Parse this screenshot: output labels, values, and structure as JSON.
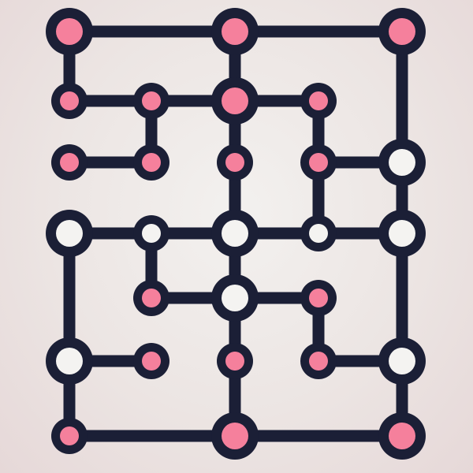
{
  "colors": {
    "background": "#efe9e7",
    "wire": "#1b1f36",
    "node_ring": "#1b1f36",
    "node_lit": "#f5809c",
    "node_unlit": "#f4f3f1"
  },
  "puzzle": {
    "nodes": [
      {
        "id": "r0c0",
        "row": 0,
        "col": 0,
        "state": "lit",
        "size": "large"
      },
      {
        "id": "r0c2",
        "row": 0,
        "col": 2,
        "state": "lit",
        "size": "large"
      },
      {
        "id": "r0c4",
        "row": 0,
        "col": 4,
        "state": "lit",
        "size": "large"
      },
      {
        "id": "r1c0",
        "row": 1,
        "col": 0,
        "state": "lit",
        "size": "small"
      },
      {
        "id": "r1c1",
        "row": 1,
        "col": 1,
        "state": "lit",
        "size": "small"
      },
      {
        "id": "r1c2",
        "row": 1,
        "col": 2,
        "state": "lit",
        "size": "large"
      },
      {
        "id": "r1c3",
        "row": 1,
        "col": 3,
        "state": "lit",
        "size": "small"
      },
      {
        "id": "r2c0",
        "row": 2,
        "col": 0,
        "state": "lit",
        "size": "small"
      },
      {
        "id": "r2c1",
        "row": 2,
        "col": 1,
        "state": "lit",
        "size": "small"
      },
      {
        "id": "r2c2",
        "row": 2,
        "col": 2,
        "state": "lit",
        "size": "small"
      },
      {
        "id": "r2c3",
        "row": 2,
        "col": 3,
        "state": "lit",
        "size": "small"
      },
      {
        "id": "r2c4",
        "row": 2,
        "col": 4,
        "state": "unlit",
        "size": "large"
      },
      {
        "id": "r3c0",
        "row": 3,
        "col": 0,
        "state": "unlit",
        "size": "large"
      },
      {
        "id": "r3c1",
        "row": 3,
        "col": 1,
        "state": "unlit",
        "size": "small"
      },
      {
        "id": "r3c2",
        "row": 3,
        "col": 2,
        "state": "unlit",
        "size": "large"
      },
      {
        "id": "r3c3",
        "row": 3,
        "col": 3,
        "state": "unlit",
        "size": "small"
      },
      {
        "id": "r3c4",
        "row": 3,
        "col": 4,
        "state": "unlit",
        "size": "large"
      },
      {
        "id": "r4c1",
        "row": 4,
        "col": 1,
        "state": "lit",
        "size": "small"
      },
      {
        "id": "r4c2",
        "row": 4,
        "col": 2,
        "state": "unlit",
        "size": "large"
      },
      {
        "id": "r4c3",
        "row": 4,
        "col": 3,
        "state": "lit",
        "size": "small"
      },
      {
        "id": "r5c0",
        "row": 5,
        "col": 0,
        "state": "unlit",
        "size": "large"
      },
      {
        "id": "r5c1",
        "row": 5,
        "col": 1,
        "state": "lit",
        "size": "small"
      },
      {
        "id": "r5c2",
        "row": 5,
        "col": 2,
        "state": "lit",
        "size": "small"
      },
      {
        "id": "r5c3",
        "row": 5,
        "col": 3,
        "state": "lit",
        "size": "small"
      },
      {
        "id": "r5c4",
        "row": 5,
        "col": 4,
        "state": "unlit",
        "size": "large"
      },
      {
        "id": "r6c0",
        "row": 6,
        "col": 0,
        "state": "lit",
        "size": "small"
      },
      {
        "id": "r6c2",
        "row": 6,
        "col": 2,
        "state": "lit",
        "size": "large"
      },
      {
        "id": "r6c4",
        "row": 6,
        "col": 4,
        "state": "lit",
        "size": "large"
      }
    ],
    "wires": [
      [
        "r0c0",
        "r0c2"
      ],
      [
        "r0c2",
        "r0c4"
      ],
      [
        "r0c0",
        "r1c0"
      ],
      [
        "r0c2",
        "r1c2"
      ],
      [
        "r0c4",
        "r2c4"
      ],
      [
        "r1c0",
        "r1c1"
      ],
      [
        "r1c1",
        "r1c2"
      ],
      [
        "r1c2",
        "r1c3"
      ],
      [
        "r1c1",
        "r2c1"
      ],
      [
        "r1c3",
        "r2c3"
      ],
      [
        "r1c2",
        "r2c2"
      ],
      [
        "r2c0",
        "r2c1"
      ],
      [
        "r2c3",
        "r2c4"
      ],
      [
        "r2c2",
        "r3c2"
      ],
      [
        "r2c3",
        "r3c3"
      ],
      [
        "r2c4",
        "r3c4"
      ],
      [
        "r3c0",
        "r3c1"
      ],
      [
        "r3c1",
        "r3c2"
      ],
      [
        "r3c2",
        "r3c3"
      ],
      [
        "r3c3",
        "r3c4"
      ],
      [
        "r3c1",
        "r4c1"
      ],
      [
        "r3c2",
        "r4c2"
      ],
      [
        "r3c0",
        "r5c0"
      ],
      [
        "r3c4",
        "r5c4"
      ],
      [
        "r4c1",
        "r4c2"
      ],
      [
        "r4c2",
        "r4c3"
      ],
      [
        "r4c2",
        "r5c2"
      ],
      [
        "r4c3",
        "r5c3"
      ],
      [
        "r5c0",
        "r5c1"
      ],
      [
        "r5c3",
        "r5c4"
      ],
      [
        "r5c0",
        "r6c0"
      ],
      [
        "r5c2",
        "r6c2"
      ],
      [
        "r5c4",
        "r6c4"
      ],
      [
        "r6c0",
        "r6c2"
      ],
      [
        "r6c2",
        "r6c4"
      ]
    ]
  }
}
